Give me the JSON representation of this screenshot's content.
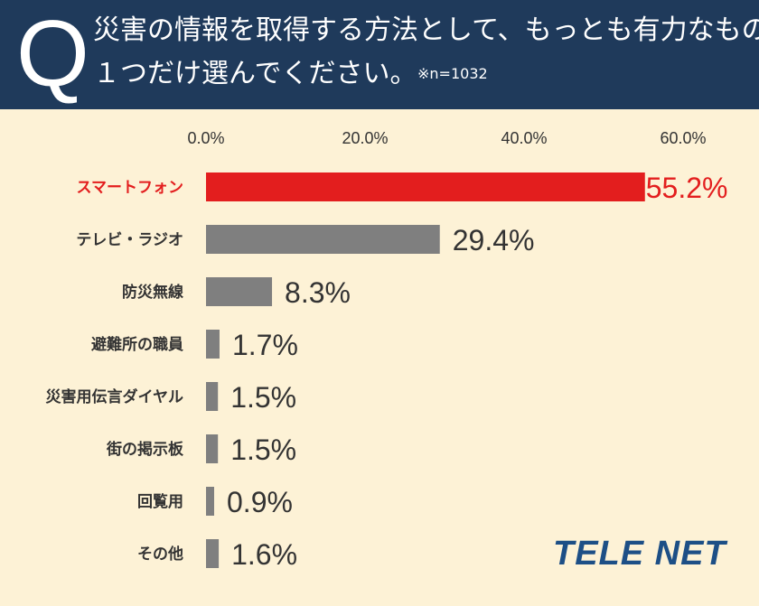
{
  "header": {
    "q_letter": "Q",
    "question_line1": "災害の情報を取得する方法として、もっとも有力なものを",
    "question_line2": "１つだけ選んでください。",
    "sample_note": "※n=1032"
  },
  "logo": {
    "text": "TELE NET"
  },
  "colors": {
    "highlight": "#e31e1e",
    "bar": "#7f7f7f",
    "header_bg": "#1f3a5b",
    "background": "#fdf2d6",
    "logo": "#1d4f86"
  },
  "chart_data": {
    "type": "bar",
    "orientation": "horizontal",
    "categories": [
      "スマートフォン",
      "テレビ・ラジオ",
      "防災無線",
      "避難所の職員",
      "災害用伝言ダイヤル",
      "街の掲示板",
      "回覧用",
      "その他"
    ],
    "values": [
      55.2,
      29.4,
      8.3,
      1.7,
      1.5,
      1.5,
      0.9,
      1.6
    ],
    "value_labels": [
      "55.2%",
      "29.4%",
      "8.3%",
      "1.7%",
      "1.5%",
      "1.5%",
      "0.9%",
      "1.6%"
    ],
    "highlight_index": 0,
    "x_ticks": [
      "0.0%",
      "20.0%",
      "40.0%",
      "60.0%"
    ],
    "xlim": [
      0,
      60
    ],
    "grid": false,
    "legend": "none"
  }
}
